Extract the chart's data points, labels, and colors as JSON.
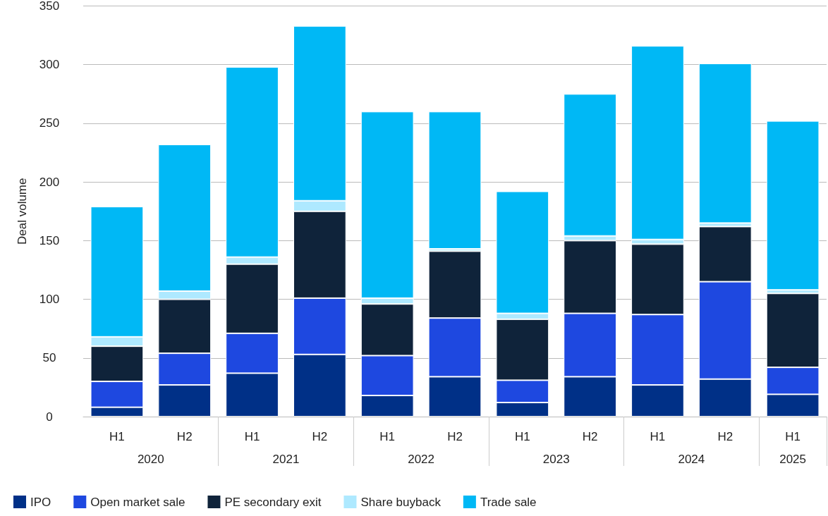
{
  "chart_data": {
    "type": "bar",
    "stacked": true,
    "ylabel": "Deal volume",
    "categories": [
      "H1",
      "H2",
      "H1",
      "H2",
      "H1",
      "H2",
      "H1",
      "H2",
      "H1",
      "H2",
      "H1"
    ],
    "annotations": [
      "2020",
      "2021",
      "2022",
      "2023",
      "2024",
      "2025"
    ],
    "series": [
      {
        "name": "IPO",
        "color": "#003087",
        "values": [
          8,
          27,
          37,
          53,
          18,
          34,
          12,
          34,
          27,
          32,
          19
        ]
      },
      {
        "name": "Open market sale",
        "color": "#1e48e0",
        "values": [
          22,
          27,
          34,
          48,
          34,
          50,
          19,
          54,
          60,
          83,
          23
        ]
      },
      {
        "name": "PE secondary exit",
        "color": "#0f233a",
        "values": [
          30,
          46,
          59,
          74,
          44,
          57,
          52,
          62,
          60,
          47,
          63
        ]
      },
      {
        "name": "Share buyback",
        "color": "#aee9ff",
        "values": [
          8,
          7,
          6,
          9,
          5,
          2,
          5,
          4,
          4,
          3,
          3
        ]
      },
      {
        "name": "Trade sale",
        "color": "#00b8f5",
        "values": [
          111,
          125,
          162,
          149,
          159,
          117,
          104,
          121,
          165,
          136,
          144
        ]
      }
    ],
    "ylim": [
      0,
      350
    ],
    "yticks": [
      0,
      50,
      100,
      150,
      200,
      250,
      300,
      350
    ],
    "grid": "y",
    "legend": "bottom left"
  }
}
